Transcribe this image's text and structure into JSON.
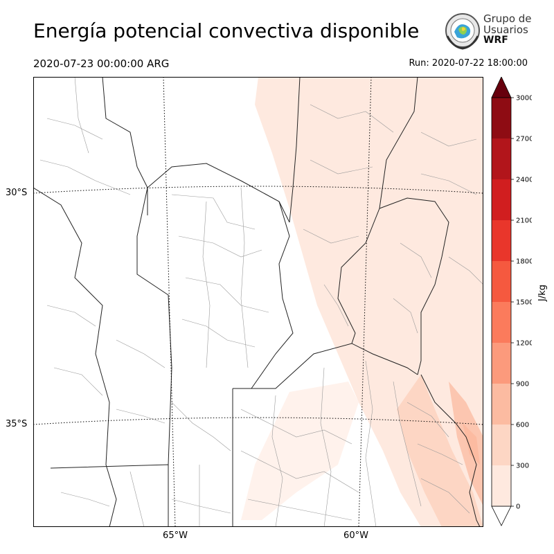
{
  "header": {
    "title": "Energía potencial convectiva disponible",
    "valid_time": "2020-07-23 00:00:00 ARG",
    "run_time": "Run: 2020-07-22 18:00:00"
  },
  "logo": {
    "line1": "Grupo de",
    "line2": "Usuarios",
    "line3": "WRF",
    "icon": "group-logo-emblem"
  },
  "map": {
    "lat_labels": [
      "30°S",
      "35°S"
    ],
    "lon_labels": [
      "65°W",
      "60°W"
    ]
  },
  "colorbar": {
    "unit": "J/kg",
    "levels": [
      0,
      300,
      600,
      900,
      1200,
      1500,
      1800,
      2100,
      2400,
      2700,
      3000
    ],
    "tick_labels": [
      "0",
      "300",
      "600",
      "900",
      "1200",
      "1500",
      "1800",
      "2100",
      "2400",
      "2700",
      "3000"
    ],
    "colors": [
      "#fee9df",
      "#fdd6c4",
      "#fcbba1",
      "#fc9a7c",
      "#fb7b5c",
      "#f5593f",
      "#e9362b",
      "#d11e1f",
      "#b2151b",
      "#8e0c13"
    ],
    "over_color": "#67000d",
    "under_color": "#ffffff"
  }
}
